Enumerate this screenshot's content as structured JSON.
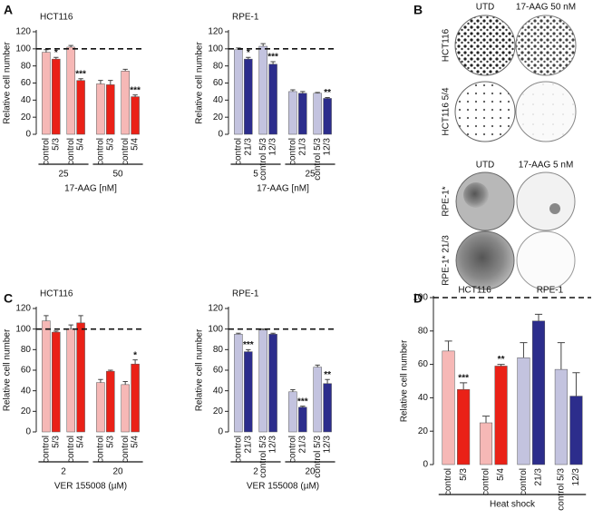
{
  "panel_labels": [
    "A",
    "B",
    "C",
    "D"
  ],
  "plates": {
    "column_headers_top": [
      "UTD",
      "17-AAG 50 nM"
    ],
    "row_labels_top": [
      "HCT116",
      "HCT116 5/4"
    ],
    "column_headers_bottom": [
      "UTD",
      "17-AAG 5 nM"
    ],
    "row_labels_bottom": [
      "RPE-1*",
      "RPE-1* 21/3"
    ]
  },
  "chart_data": [
    {
      "type": "bar",
      "title": "HCT116",
      "ylabel": "Relative cell number",
      "xlabel": "17-AAG [nM]",
      "categories": [
        "control",
        "5/3",
        "control",
        "5/4",
        "control",
        "5/3",
        "control",
        "5/4"
      ],
      "group_labels": [
        "25",
        "50"
      ],
      "values": [
        96,
        88,
        102,
        63,
        59,
        58,
        74,
        44
      ],
      "errors": [
        3,
        2,
        2,
        2,
        4,
        5,
        2,
        2
      ],
      "annotations": [
        null,
        "*",
        null,
        "***",
        null,
        null,
        null,
        "***"
      ],
      "colors": [
        "#f6b8b6",
        "#ea2117",
        "#f6b8b6",
        "#ea2117",
        "#f6b8b6",
        "#ea2117",
        "#f6b8b6",
        "#ea2117"
      ],
      "ylim": [
        0,
        120
      ],
      "yticks": [
        0,
        20,
        40,
        60,
        80,
        100,
        120
      ],
      "reference_line": 100
    },
    {
      "type": "bar",
      "title": "RPE-1",
      "ylabel": "Relative cell number",
      "xlabel": "17-AAG [nM]",
      "categories": [
        "control",
        "21/3",
        "control 5/3",
        "12/3",
        "control",
        "21/3",
        "control 5/3",
        "12/3"
      ],
      "group_labels": [
        "5",
        "25"
      ],
      "values": [
        99,
        88,
        103,
        82,
        50,
        48,
        48,
        42
      ],
      "errors": [
        2,
        2,
        3,
        3,
        2,
        2,
        1,
        1
      ],
      "annotations": [
        null,
        "*",
        null,
        "***",
        null,
        null,
        null,
        "**"
      ],
      "colors": [
        "#c3c3df",
        "#2c2d8c",
        "#c3c3df",
        "#2c2d8c",
        "#c3c3df",
        "#2c2d8c",
        "#c3c3df",
        "#2c2d8c"
      ],
      "ylim": [
        0,
        120
      ],
      "yticks": [
        0,
        20,
        40,
        60,
        80,
        100,
        120
      ],
      "reference_line": 100
    },
    {
      "type": "bar",
      "title": "HCT116",
      "ylabel": "Relative cell number",
      "xlabel": "VER 155008 (µM)",
      "categories": [
        "control",
        "5/3",
        "control",
        "5/4",
        "control",
        "5/3",
        "control",
        "5/4"
      ],
      "group_labels": [
        "2",
        "20"
      ],
      "values": [
        108,
        97,
        100,
        106,
        48,
        59,
        46,
        66
      ],
      "errors": [
        5,
        1,
        4,
        7,
        3,
        1,
        3,
        4
      ],
      "annotations": [
        null,
        null,
        null,
        null,
        null,
        null,
        null,
        "*"
      ],
      "colors": [
        "#f6b8b6",
        "#ea2117",
        "#f6b8b6",
        "#ea2117",
        "#f6b8b6",
        "#ea2117",
        "#f6b8b6",
        "#ea2117"
      ],
      "ylim": [
        0,
        120
      ],
      "yticks": [
        0,
        20,
        40,
        60,
        80,
        100,
        120
      ],
      "reference_line": 100
    },
    {
      "type": "bar",
      "title": "RPE-1",
      "ylabel": "Relative cell number",
      "xlabel": "VER 155008 (µM)",
      "categories": [
        "control",
        "21/3",
        "control 5/3",
        "12/3",
        "control",
        "21/3",
        "control 5/3",
        "12/3"
      ],
      "group_labels": [
        "2",
        "20"
      ],
      "values": [
        95,
        78,
        99,
        95,
        39,
        24,
        63,
        47
      ],
      "errors": [
        1,
        2,
        1,
        1,
        2,
        1,
        2,
        4
      ],
      "annotations": [
        null,
        "***",
        null,
        null,
        null,
        "***",
        null,
        "**"
      ],
      "colors": [
        "#c3c3df",
        "#2c2d8c",
        "#c3c3df",
        "#2c2d8c",
        "#c3c3df",
        "#2c2d8c",
        "#c3c3df",
        "#2c2d8c"
      ],
      "ylim": [
        0,
        120
      ],
      "yticks": [
        0,
        20,
        40,
        60,
        80,
        100,
        120
      ],
      "reference_line": 100
    },
    {
      "type": "bar",
      "panel_titles": [
        "HCT116",
        "RPE-1"
      ],
      "ylabel": "Relative cell number",
      "categories": [
        "control",
        "5/3",
        "control",
        "5/4",
        "control",
        "21/3",
        "control 5/3",
        "12/3"
      ],
      "group_labels": [
        "Heat shock"
      ],
      "values": [
        68,
        45,
        25,
        59,
        64,
        86,
        57,
        41
      ],
      "errors": [
        6,
        4,
        4,
        1,
        9,
        4,
        16,
        14
      ],
      "annotations": [
        null,
        "***",
        null,
        "**",
        null,
        null,
        null,
        null
      ],
      "colors": [
        "#f6b8b6",
        "#ea2117",
        "#f6b8b6",
        "#ea2117",
        "#c3c3df",
        "#2c2d8c",
        "#c3c3df",
        "#2c2d8c"
      ],
      "ylim": [
        0,
        100
      ],
      "yticks": [
        0,
        20,
        40,
        60,
        80,
        100
      ],
      "reference_line": 100
    }
  ]
}
